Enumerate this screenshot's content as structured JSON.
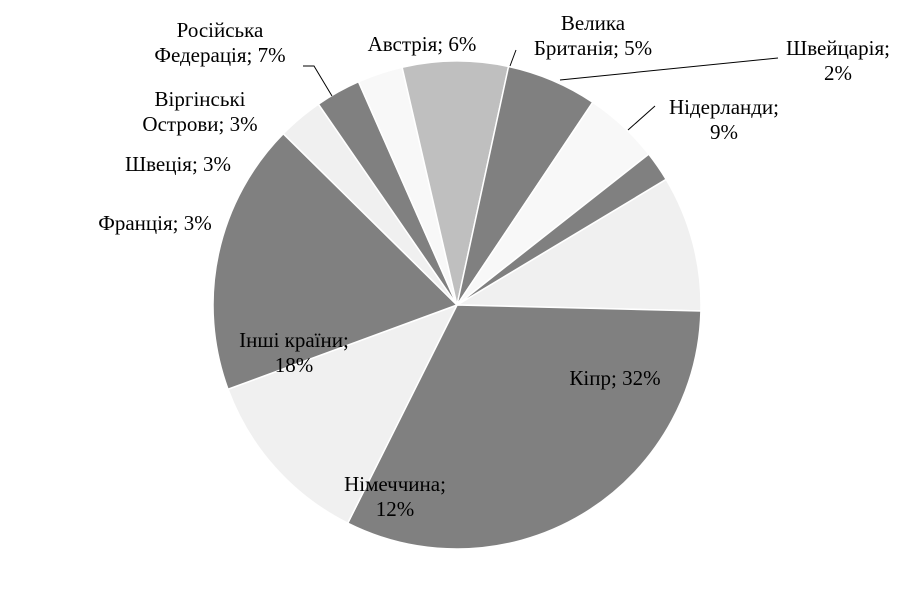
{
  "chart_data": {
    "type": "pie",
    "title": "",
    "start_angle_deg": -31,
    "direction": "clockwise",
    "colors": {
      "dark": "#808080",
      "light": "#f0f0f0",
      "silver": "#bfbfbf",
      "white": "#f8f8f8"
    },
    "slices": [
      {
        "name": "Нідерланди",
        "value": 9,
        "color": "#f0f0f0",
        "label_lines": [
          "Нідерланди;",
          "9%"
        ]
      },
      {
        "name": "Кіпр",
        "value": 32,
        "color": "#808080",
        "label_lines": [
          "Кіпр; 32%"
        ]
      },
      {
        "name": "Німеччина",
        "value": 12,
        "color": "#f0f0f0",
        "label_lines": [
          "Німеччина;",
          "12%"
        ]
      },
      {
        "name": "Інші країни",
        "value": 18,
        "color": "#808080",
        "label_lines": [
          "Інші країни;",
          "18%"
        ]
      },
      {
        "name": "Франція",
        "value": 3,
        "color": "#f0f0f0",
        "label_lines": [
          "Франція; 3%"
        ]
      },
      {
        "name": "Швеція",
        "value": 3,
        "color": "#808080",
        "label_lines": [
          "Швеція; 3%"
        ]
      },
      {
        "name": "Віргінські Острови",
        "value": 3,
        "color": "#f8f8f8",
        "label_lines": [
          "Віргінські",
          "Острови; 3%"
        ]
      },
      {
        "name": "Російська Федерація",
        "value": 7,
        "color": "#bfbfbf",
        "label_lines": [
          "Російська",
          "Федерація; 7%"
        ]
      },
      {
        "name": "Австрія",
        "value": 6,
        "color": "#808080",
        "label_lines": [
          "Австрія; 6%"
        ]
      },
      {
        "name": "Велика Британія",
        "value": 5,
        "color": "#f8f8f8",
        "label_lines": [
          "Велика",
          "Британія; 5%"
        ]
      },
      {
        "name": "Швейцарія",
        "value": 2,
        "color": "#808080",
        "label_lines": [
          "Швейцарія;",
          "2%"
        ]
      }
    ]
  }
}
